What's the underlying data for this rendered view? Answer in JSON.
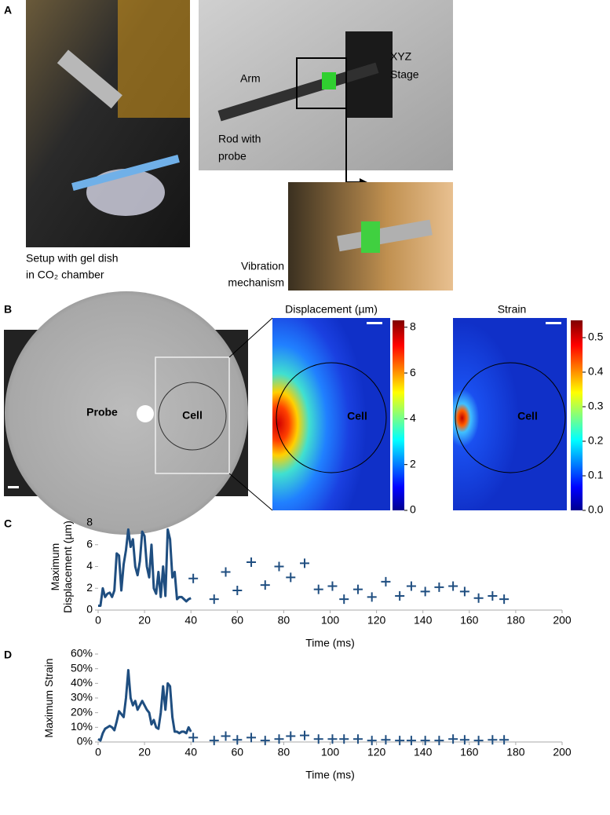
{
  "panel_a": {
    "label": "A",
    "arm": "Arm",
    "xyz_stage": [
      "XYZ",
      "Stage"
    ],
    "rod_with_probe": [
      "Rod with",
      "probe"
    ],
    "setup": [
      "Setup with gel dish",
      "in CO₂ chamber"
    ],
    "vibration": [
      "Vibration",
      "mechanism"
    ]
  },
  "panel_b": {
    "label": "B",
    "probe": "Probe",
    "cell": "Cell",
    "displacement_map": {
      "title": "Displacement (µm)",
      "cell": "Cell",
      "colorbar_lim": [
        0,
        8.3
      ],
      "colorbar_ticks": [
        0,
        2,
        4,
        6,
        8
      ]
    },
    "strain_map": {
      "title": "Strain",
      "cell": "Cell",
      "colorbar_lim": [
        0,
        0.55
      ],
      "colorbar_ticks": [
        {
          "value": 0,
          "label": "0.0"
        },
        0.1,
        0.2,
        0.3,
        0.4,
        0.5
      ]
    }
  },
  "chart_data": [
    {
      "type": "line",
      "panel_label": "C",
      "x_label": "Time (ms)",
      "y_label": "Maximum Displacement (µm)",
      "xlim": [
        0,
        200
      ],
      "xticks": [
        0,
        20,
        40,
        60,
        80,
        100,
        120,
        140,
        160,
        180,
        200
      ],
      "ylim": [
        0,
        8
      ],
      "yticks": [
        0,
        2,
        4,
        6,
        8
      ],
      "series": [
        {
          "type": "line",
          "color": "#1f4e80",
          "x": [
            0,
            1,
            2,
            3,
            4,
            5,
            6,
            7,
            8,
            9,
            10,
            11,
            12,
            13,
            14,
            15,
            16,
            17,
            18,
            19,
            20,
            21,
            22,
            23,
            24,
            25,
            26,
            27,
            28,
            29,
            30,
            31,
            32,
            33,
            34,
            35,
            36,
            37,
            38,
            39,
            40
          ],
          "values": [
            0.4,
            0.4,
            2.0,
            1.2,
            1.5,
            1.6,
            1.2,
            1.8,
            5.2,
            5.0,
            1.8,
            4.2,
            5.5,
            7.4,
            5.8,
            6.5,
            4.0,
            3.2,
            4.5,
            7.2,
            6.8,
            4.0,
            3.0,
            6.0,
            2.0,
            1.5,
            3.5,
            1.2,
            4.0,
            1.3,
            7.4,
            6.5,
            3.0,
            3.5,
            1.0,
            1.2,
            1.2,
            1.0,
            0.8,
            1.0,
            1.1
          ]
        },
        {
          "type": "scatter",
          "color": "#1f4e80",
          "x": [
            41,
            50,
            55,
            60,
            66,
            72,
            78,
            83,
            89,
            95,
            101,
            106,
            112,
            118,
            124,
            130,
            135,
            141,
            147,
            153,
            158,
            164,
            170,
            175
          ],
          "values": [
            2.9,
            1.0,
            3.5,
            1.8,
            4.4,
            2.3,
            4.0,
            3.0,
            4.3,
            1.9,
            2.2,
            1.0,
            1.9,
            1.2,
            2.6,
            1.3,
            2.2,
            1.7,
            2.1,
            2.2,
            1.7,
            1.1,
            1.3,
            1.0
          ]
        }
      ]
    },
    {
      "type": "line",
      "panel_label": "D",
      "x_label": "Time (ms)",
      "y_label": "Maximum Strain",
      "xlim": [
        0,
        200
      ],
      "xticks": [
        0,
        20,
        40,
        60,
        80,
        100,
        120,
        140,
        160,
        180,
        200
      ],
      "ylim": [
        0,
        60
      ],
      "yticks": [
        {
          "value": 0,
          "label": "0%"
        },
        {
          "value": 10,
          "label": "10%"
        },
        {
          "value": 20,
          "label": "20%"
        },
        {
          "value": 30,
          "label": "30%"
        },
        {
          "value": 40,
          "label": "40%"
        },
        {
          "value": 50,
          "label": "50%"
        },
        {
          "value": 60,
          "label": "60%"
        }
      ],
      "series": [
        {
          "type": "line",
          "color": "#1f4e80",
          "x": [
            0,
            1,
            2,
            3,
            4,
            5,
            6,
            7,
            8,
            9,
            10,
            11,
            12,
            13,
            14,
            15,
            16,
            17,
            18,
            19,
            20,
            21,
            22,
            23,
            24,
            25,
            26,
            27,
            28,
            29,
            30,
            31,
            32,
            33,
            34,
            35,
            36,
            37,
            38,
            39,
            40
          ],
          "values": [
            2,
            1,
            6,
            9,
            10,
            11,
            10,
            8,
            14,
            21,
            19,
            17,
            30,
            49,
            30,
            25,
            28,
            22,
            25,
            28,
            25,
            22,
            20,
            12,
            15,
            10,
            9,
            20,
            38,
            22,
            40,
            38,
            17,
            7,
            7,
            6,
            7,
            7,
            6,
            10,
            7
          ]
        },
        {
          "type": "scatter",
          "color": "#1f4e80",
          "x": [
            41,
            50,
            55,
            60,
            66,
            72,
            78,
            83,
            89,
            95,
            101,
            106,
            112,
            118,
            124,
            130,
            135,
            141,
            147,
            153,
            158,
            164,
            170,
            175
          ],
          "values": [
            3,
            1,
            4,
            1.5,
            3,
            1,
            2,
            4,
            4.5,
            2,
            2,
            2,
            2,
            1,
            1.5,
            1,
            1,
            1,
            1,
            2,
            1.5,
            1,
            1.5,
            1.5
          ]
        }
      ]
    }
  ]
}
